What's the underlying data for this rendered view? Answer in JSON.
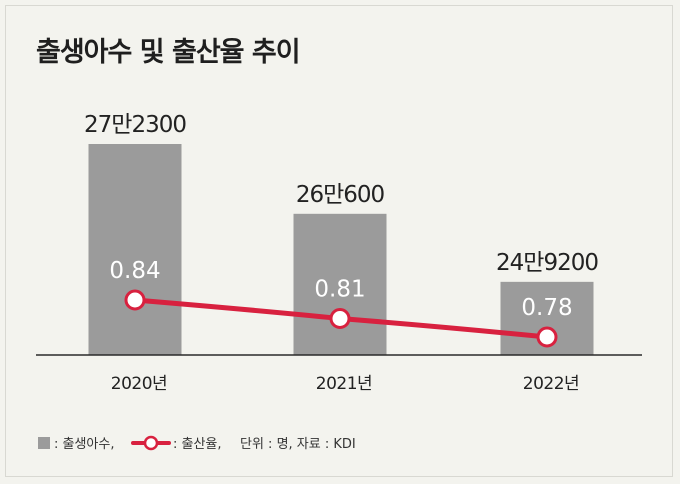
{
  "chart_data": {
    "type": "bar",
    "title": "출생아수 및 출산율 추이",
    "categories": [
      "2020년",
      "2021년",
      "2022년"
    ],
    "series": [
      {
        "name": "출생아수",
        "kind": "bar",
        "values": [
          272300,
          260600,
          249200
        ],
        "labels": [
          "27만2300",
          "26만600",
          "24만9200"
        ]
      },
      {
        "name": "출산율",
        "kind": "line",
        "values": [
          0.84,
          0.81,
          0.78
        ],
        "labels": [
          "0.84",
          "0.81",
          "0.78"
        ]
      }
    ],
    "colors": {
      "bar": "#9b9b9b",
      "line": "#d8213f",
      "text": "#222222"
    },
    "legend": {
      "bar_label": ": 출생아수,",
      "line_label": ": 출산율,",
      "unit_note": "단위 : 명, 자료 : KDI",
      "placement": "bottom-left"
    }
  }
}
